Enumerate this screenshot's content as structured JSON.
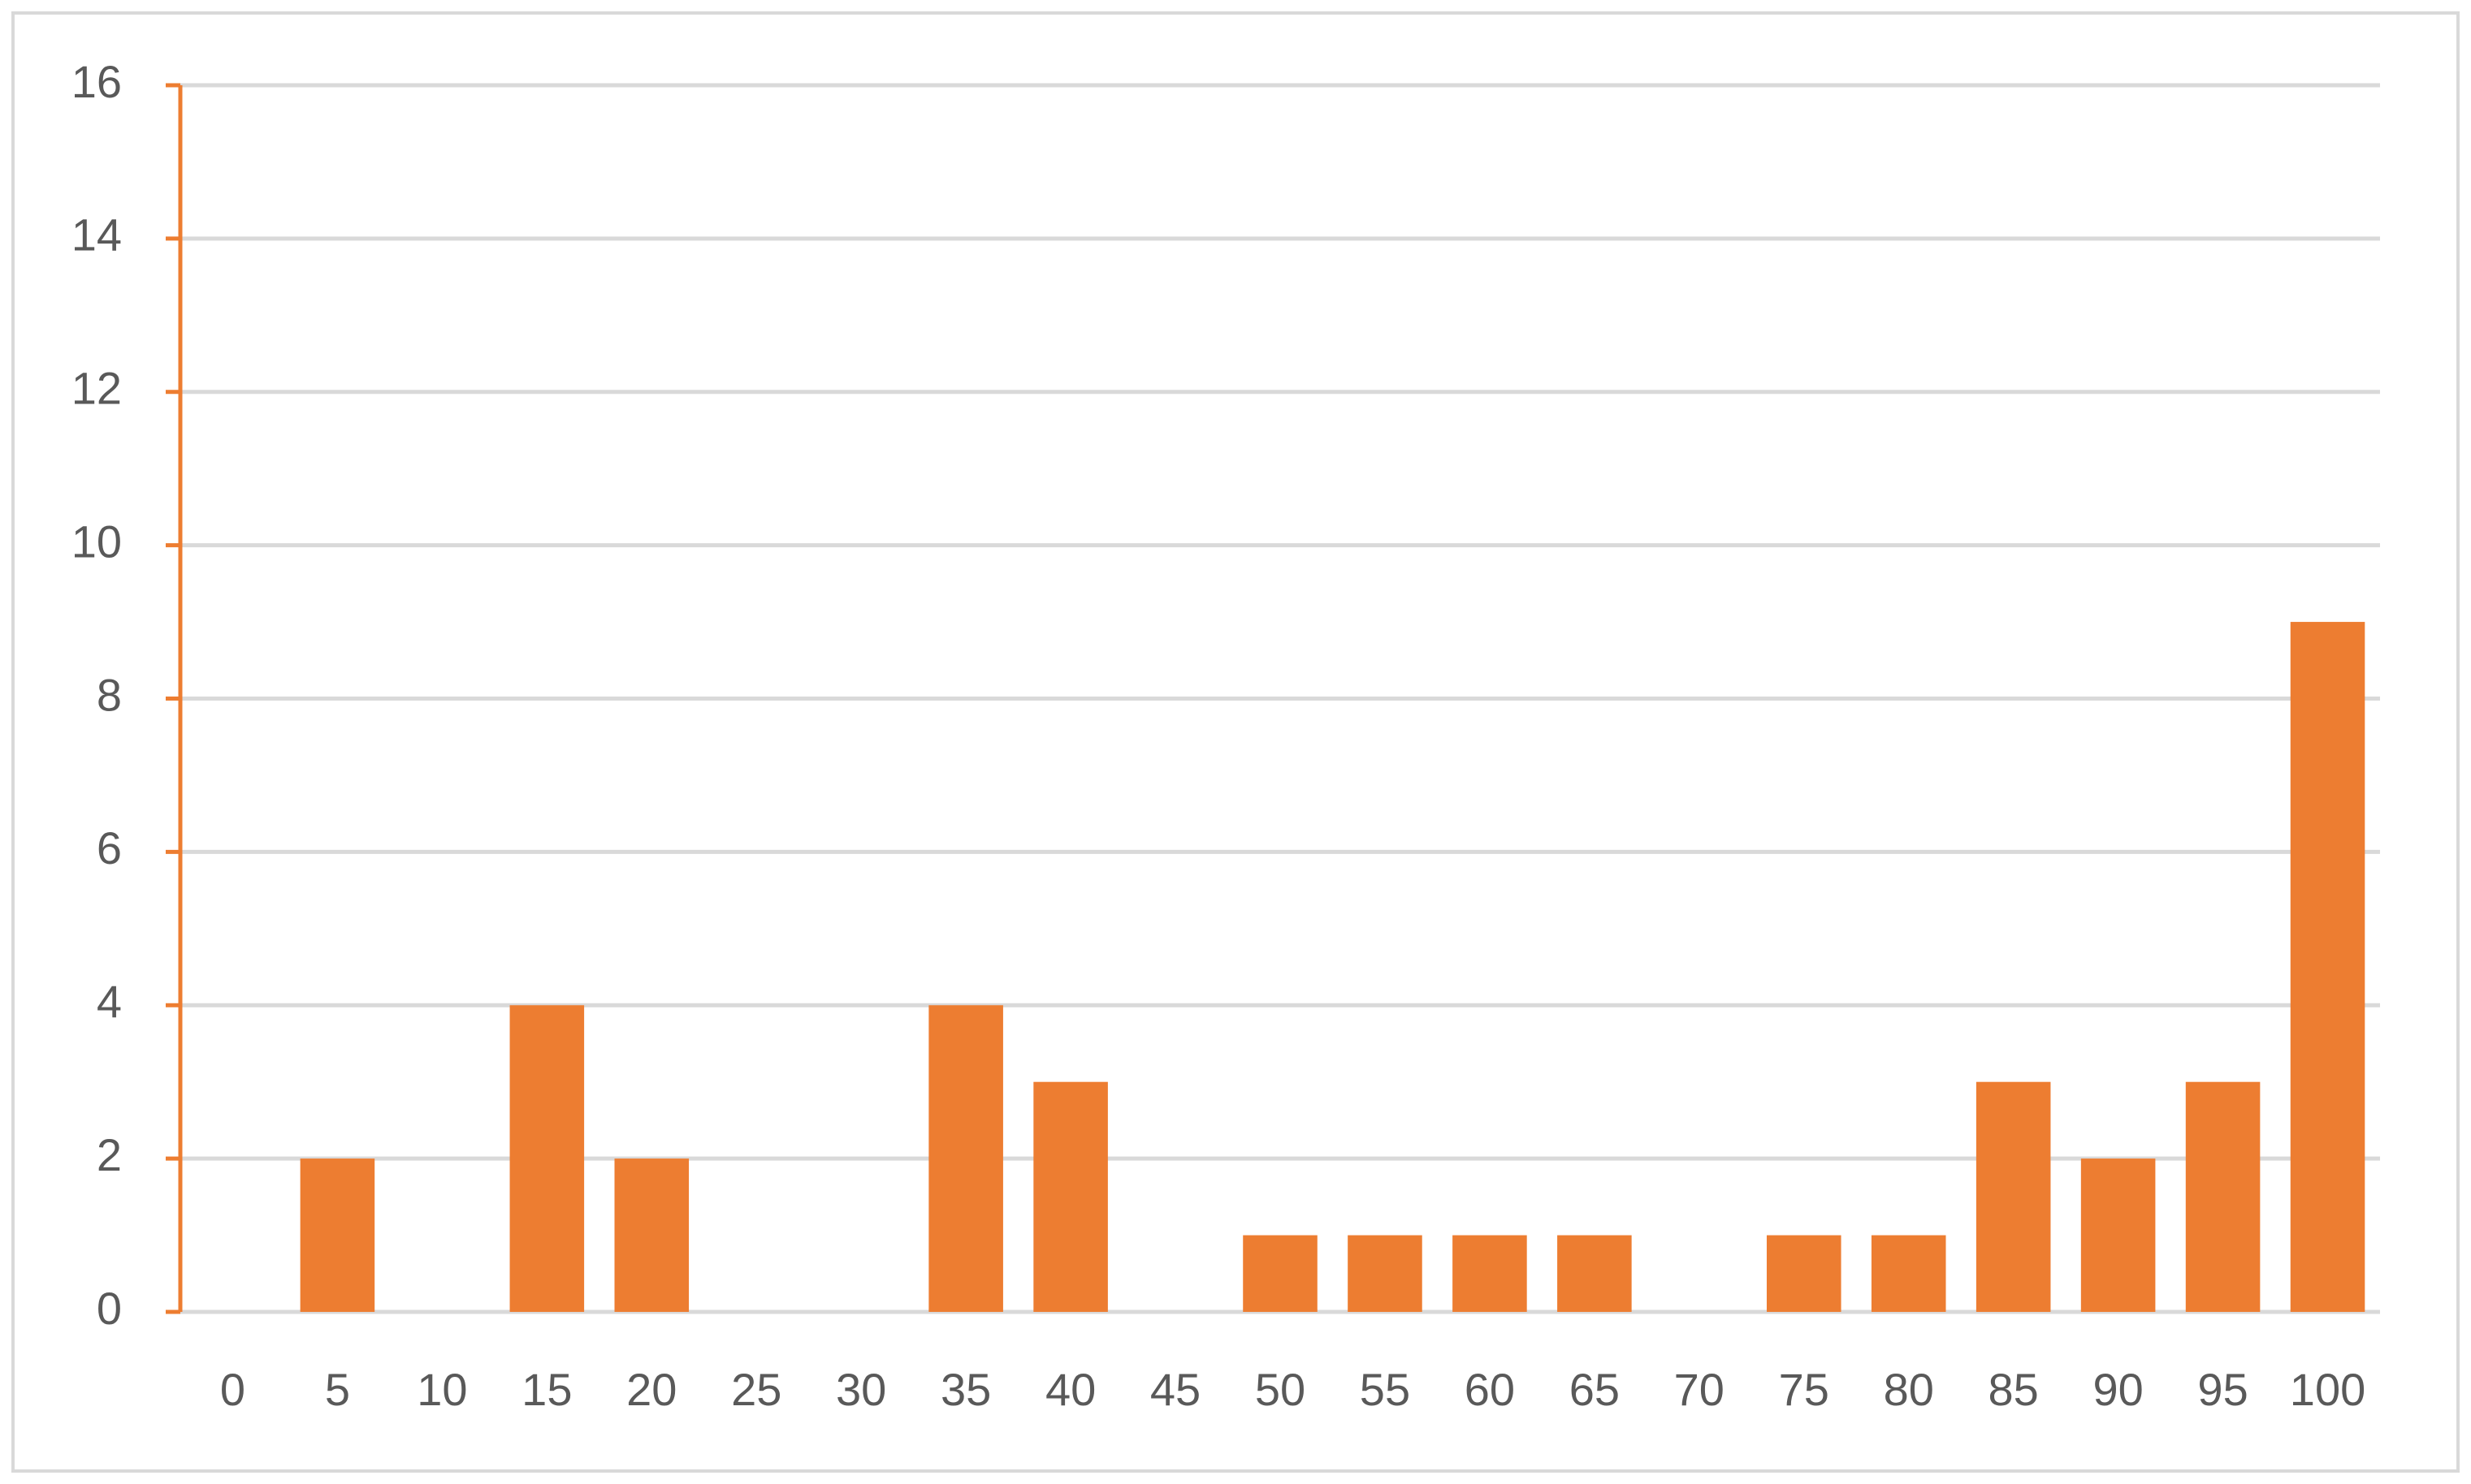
{
  "chart_data": {
    "type": "bar",
    "categories": [
      "0",
      "5",
      "10",
      "15",
      "20",
      "25",
      "30",
      "35",
      "40",
      "45",
      "50",
      "55",
      "60",
      "65",
      "70",
      "75",
      "80",
      "85",
      "90",
      "95",
      "100"
    ],
    "values": [
      0,
      2,
      0,
      4,
      2,
      0,
      0,
      4,
      3,
      0,
      1,
      1,
      1,
      1,
      0,
      1,
      1,
      3,
      2,
      3,
      9
    ],
    "color": "#ed7d31",
    "ylim": [
      0,
      16
    ],
    "yticks": [
      0,
      2,
      4,
      6,
      8,
      10,
      12,
      14,
      16
    ],
    "grid": true
  }
}
